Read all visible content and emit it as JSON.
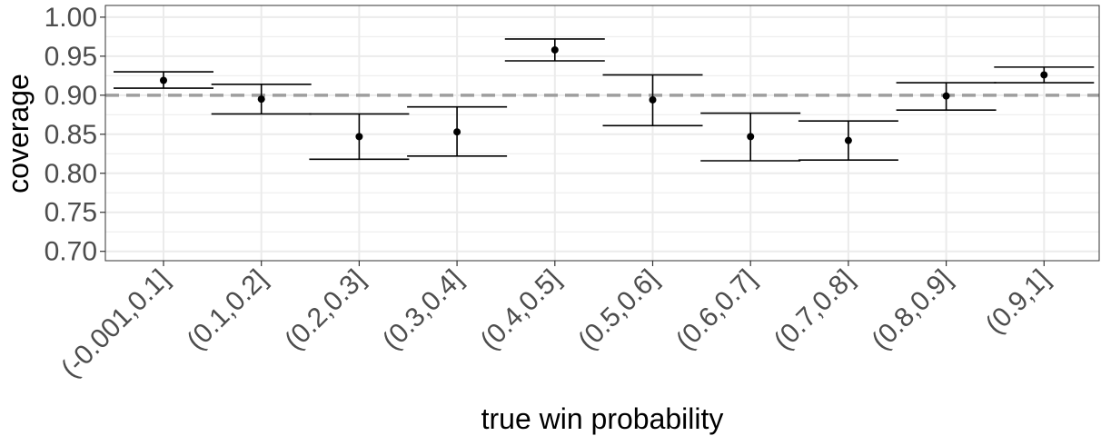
{
  "chart_data": {
    "type": "errorbar",
    "xlabel": "true win probability",
    "ylabel": "coverage",
    "categories": [
      "(-0.001,0.1]",
      "(0.1,0.2]",
      "(0.2,0.3]",
      "(0.3,0.4]",
      "(0.4,0.5]",
      "(0.5,0.6]",
      "(0.6,0.7]",
      "(0.7,0.8]",
      "(0.8,0.9]",
      "(0.9,1]"
    ],
    "values": [
      0.919,
      0.895,
      0.847,
      0.853,
      0.958,
      0.894,
      0.847,
      0.842,
      0.899,
      0.926
    ],
    "lower": [
      0.909,
      0.876,
      0.818,
      0.822,
      0.944,
      0.861,
      0.816,
      0.817,
      0.881,
      0.916
    ],
    "upper": [
      0.93,
      0.914,
      0.876,
      0.885,
      0.972,
      0.926,
      0.877,
      0.867,
      0.916,
      0.936
    ],
    "reference_line": 0.9,
    "ylim": [
      0.688,
      1.015
    ],
    "yticks": [
      0.7,
      0.75,
      0.8,
      0.85,
      0.9,
      0.95,
      1.0
    ],
    "ytick_labels": [
      "0.70",
      "0.75",
      "0.80",
      "0.85",
      "0.90",
      "0.95",
      "1.00"
    ],
    "grid": true,
    "colors": {
      "point": "#000000",
      "errorbar": "#000000",
      "reference_line": "#9e9e9e",
      "grid": "#ebebeb",
      "panel_border": "#333333",
      "tick_text": "#4d4d4d"
    }
  }
}
